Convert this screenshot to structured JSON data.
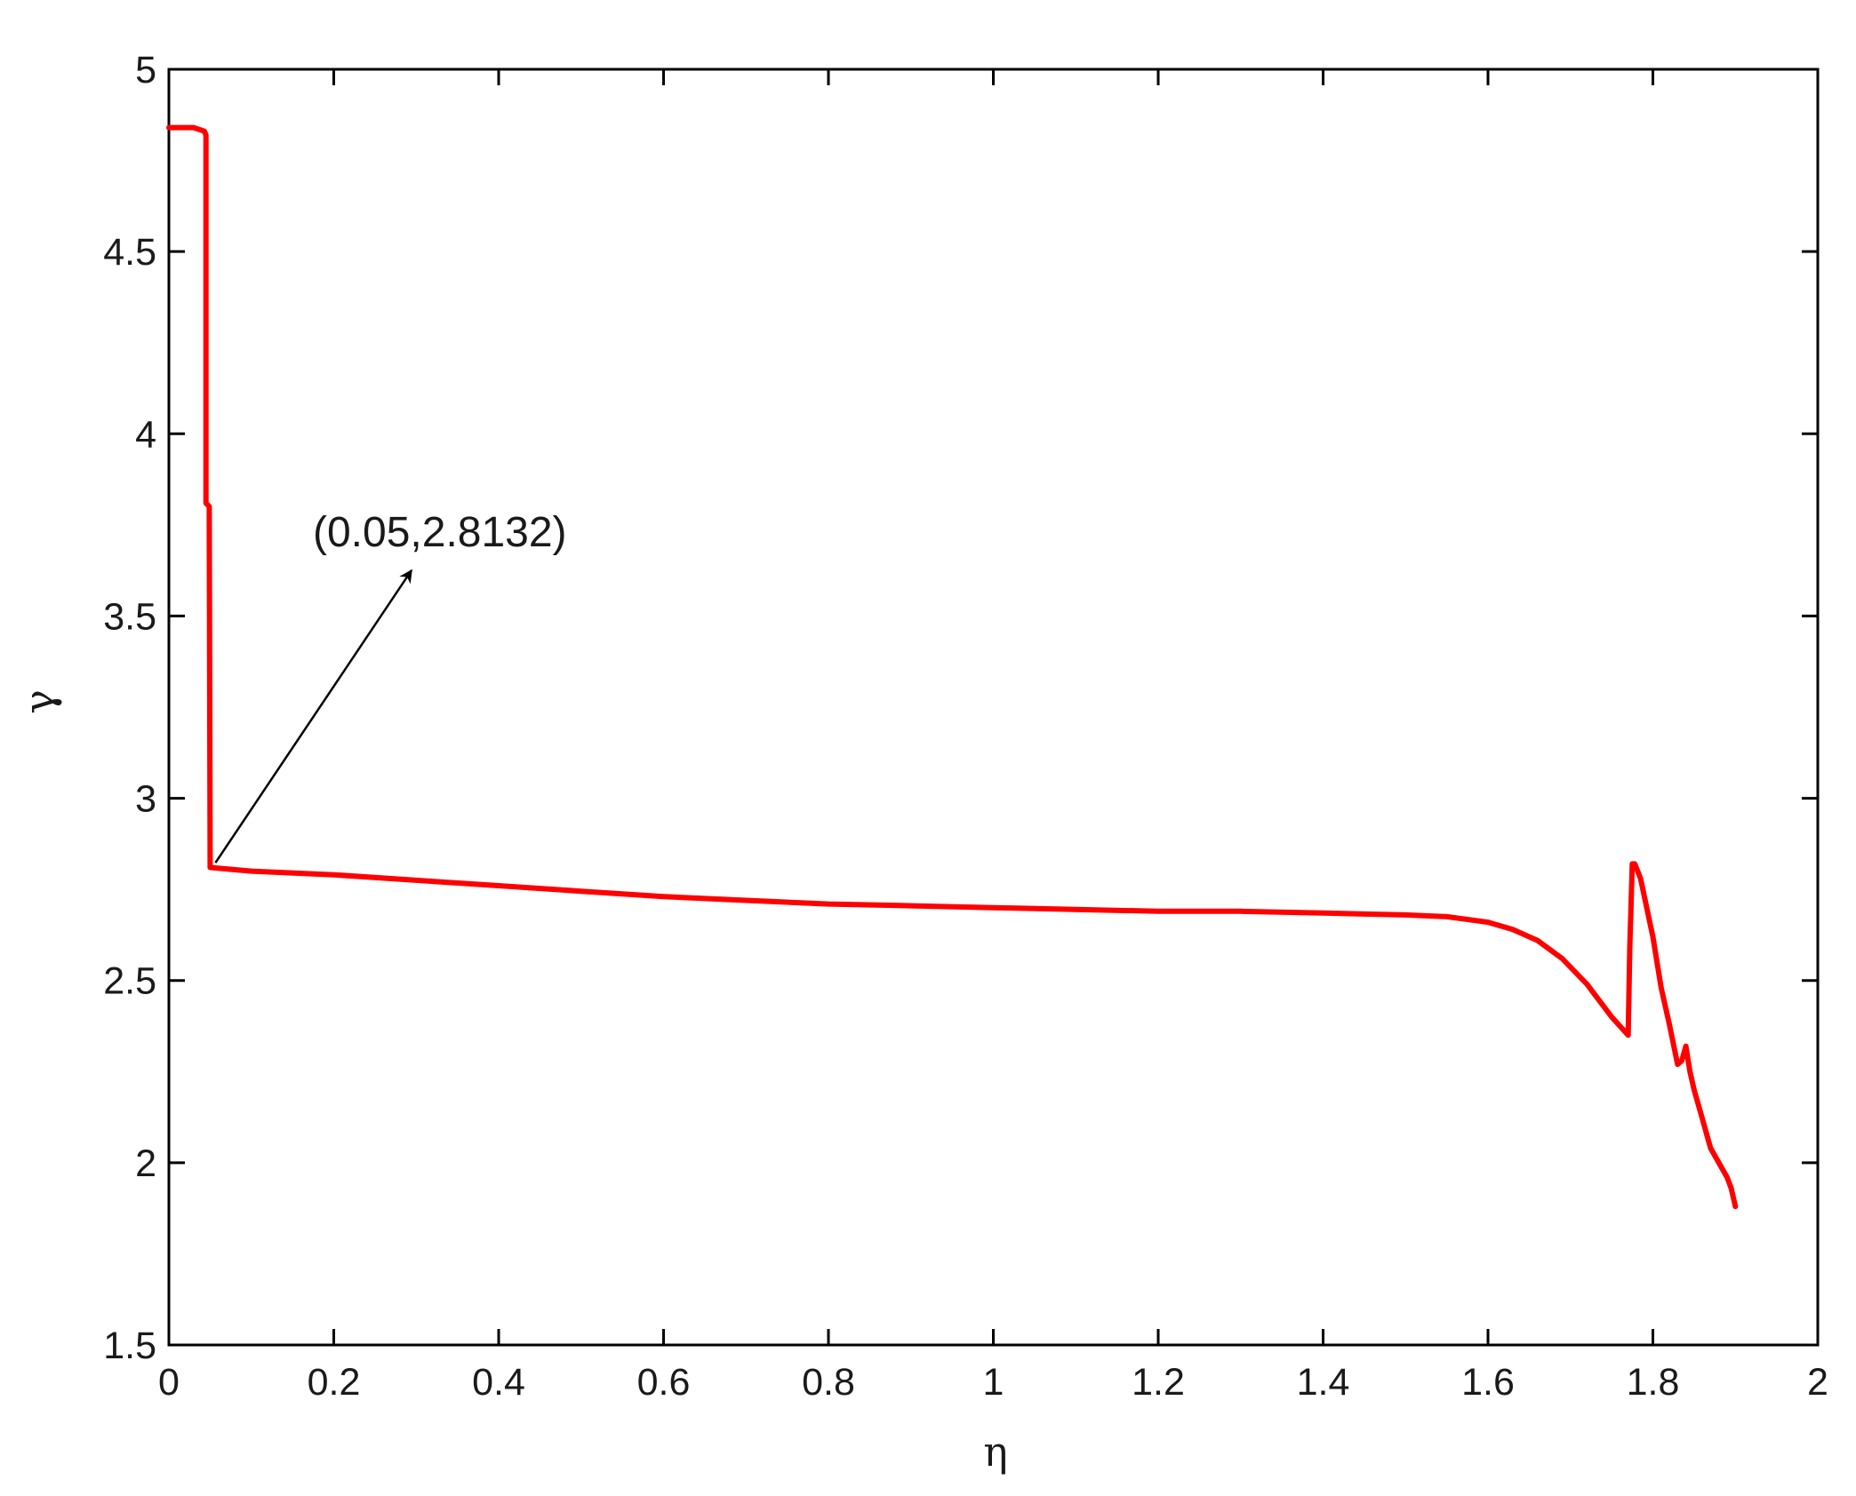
{
  "chart_data": {
    "type": "line",
    "title": "",
    "xlabel": "η",
    "ylabel": "γ",
    "xlim": [
      0,
      2
    ],
    "ylim": [
      1.5,
      5
    ],
    "xticks": [
      0,
      0.2,
      0.4,
      0.6,
      0.8,
      1,
      1.2,
      1.4,
      1.6,
      1.8,
      2
    ],
    "yticks": [
      1.5,
      2,
      2.5,
      3,
      3.5,
      4,
      4.5,
      5
    ],
    "xtick_labels": [
      "0",
      "0.2",
      "0.4",
      "0.6",
      "0.8",
      "1",
      "1.2",
      "1.4",
      "1.6",
      "1.8",
      "2"
    ],
    "ytick_labels": [
      "1.5",
      "2",
      "2.5",
      "3",
      "3.5",
      "4",
      "4.5",
      "5"
    ],
    "grid": false,
    "series": [
      {
        "color": "#ff0000",
        "x": [
          0,
          0.03,
          0.043,
          0.045,
          0.045,
          0.049,
          0.05,
          0.05,
          0.1,
          0.2,
          0.3,
          0.4,
          0.5,
          0.6,
          0.7,
          0.8,
          0.9,
          1.0,
          1.1,
          1.2,
          1.3,
          1.4,
          1.5,
          1.55,
          1.6,
          1.63,
          1.66,
          1.69,
          1.72,
          1.75,
          1.77,
          1.772,
          1.775,
          1.778,
          1.785,
          1.8,
          1.81,
          1.82,
          1.83,
          1.835,
          1.84,
          1.845,
          1.85,
          1.86,
          1.87,
          1.88,
          1.89,
          1.895,
          1.9
        ],
        "y": [
          4.84,
          4.84,
          4.83,
          4.82,
          3.81,
          3.8,
          2.82,
          2.81,
          2.8,
          2.79,
          2.775,
          2.76,
          2.745,
          2.73,
          2.72,
          2.71,
          2.705,
          2.7,
          2.695,
          2.69,
          2.69,
          2.685,
          2.68,
          2.675,
          2.66,
          2.64,
          2.61,
          2.56,
          2.49,
          2.4,
          2.35,
          2.59,
          2.82,
          2.82,
          2.78,
          2.62,
          2.48,
          2.38,
          2.27,
          2.28,
          2.32,
          2.25,
          2.2,
          2.12,
          2.04,
          2.0,
          1.96,
          1.93,
          1.88
        ]
      }
    ],
    "annotations": [
      {
        "text": "(0.05,2.8132)",
        "point": [
          0.05,
          2.8132
        ],
        "text_at": [
          0.29,
          3.64
        ]
      }
    ]
  }
}
